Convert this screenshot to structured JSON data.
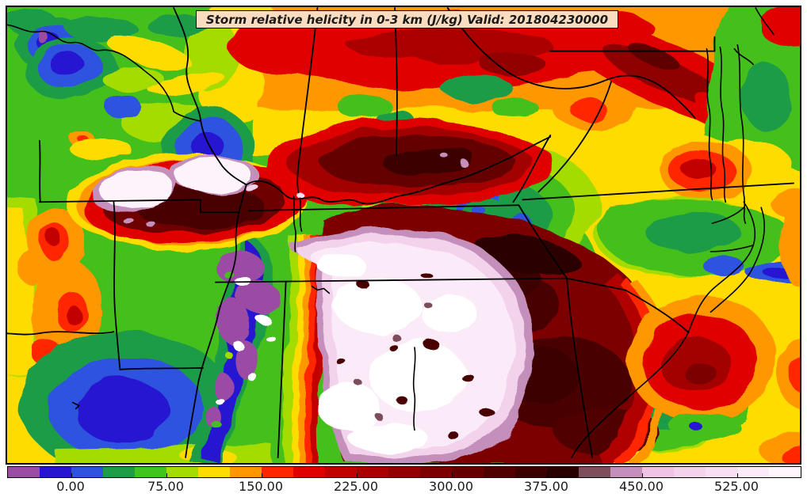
{
  "title_box": {
    "text": "Storm relative helicity in 0-3 km (J/kg) Valid: 201804230000",
    "background": "#FADCC0",
    "border_color": "#000000",
    "text_color": "#1A1A1A"
  },
  "colorbar": {
    "min": -50,
    "max": 575,
    "interval": 25,
    "tick_values": [
      0,
      75,
      150,
      225,
      300,
      375,
      450,
      525
    ],
    "tick_labels": [
      "0.00",
      "75.00",
      "150.00",
      "225.00",
      "300.00",
      "375.00",
      "450.00",
      "525.00"
    ],
    "tick_color": "#000000",
    "label_color": "#1A1A1A",
    "border_color": "#000000",
    "segment_colors": [
      "#9C4CA4",
      "#2715D2",
      "#2E53DE",
      "#1F9C46",
      "#41C41E",
      "#A4DC00",
      "#FFDC00",
      "#FF9800",
      "#FF2600",
      "#E10000",
      "#C30000",
      "#AB0000",
      "#930000",
      "#7B0000",
      "#650000",
      "#510000",
      "#3D0000",
      "#290000",
      "#7D4E5C",
      "#C48FBA",
      "#EFC2E6",
      "#F3D2EC",
      "#F7DEF2",
      "#FBEAF7",
      "#FEF6FB"
    ]
  },
  "map": {
    "frame_color": "#000000",
    "border_line_color": "#000000",
    "background_color": "#FFFFFF"
  }
}
